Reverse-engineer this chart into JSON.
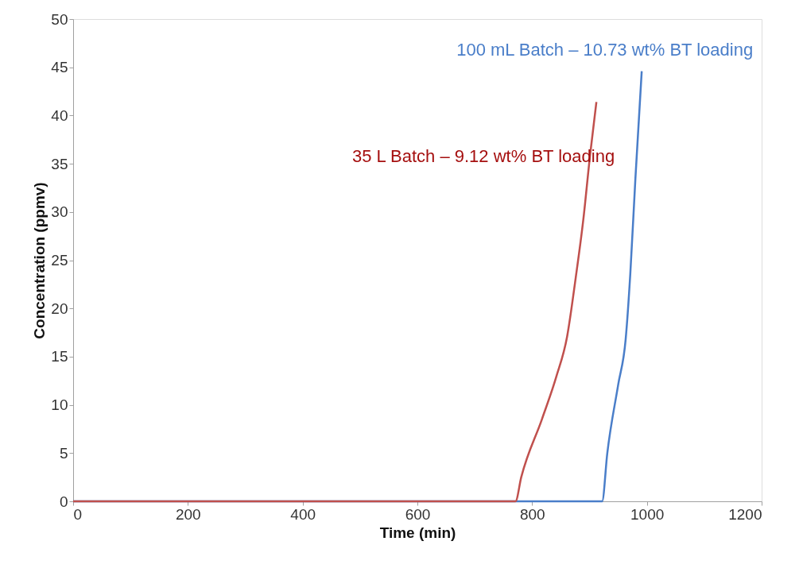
{
  "chart_data": {
    "type": "line",
    "xlabel": "Time (min)",
    "ylabel": "Concentration (ppmv)",
    "xlim": [
      0,
      1200
    ],
    "xticks": [
      0,
      200,
      400,
      600,
      800,
      1000,
      1200
    ],
    "ylim": [
      0,
      50
    ],
    "yticks": [
      0,
      5,
      10,
      15,
      20,
      25,
      30,
      35,
      40,
      45,
      50
    ],
    "grid": false,
    "marker": "none",
    "line_style": "solid",
    "series": [
      {
        "name": "100 mL Batch – 10.73 wt% BT loading",
        "color": "#4a7ec9",
        "x": [
          0,
          771,
          922,
          931,
          950,
          963,
          971,
          980,
          991
        ],
        "values": [
          0,
          0,
          0,
          5.0,
          12.1,
          16.8,
          23.5,
          33.5,
          44.6
        ]
      },
      {
        "name": "35 L Batch – 9.12 wt% BT loading",
        "color": "#c0504d",
        "x": [
          0,
          771,
          781,
          817,
          842,
          861,
          876,
          889,
          901,
          912
        ],
        "values": [
          0,
          0,
          2.5,
          8.5,
          12.9,
          17.1,
          23.2,
          29.1,
          35.9,
          41.4
        ]
      }
    ]
  }
}
